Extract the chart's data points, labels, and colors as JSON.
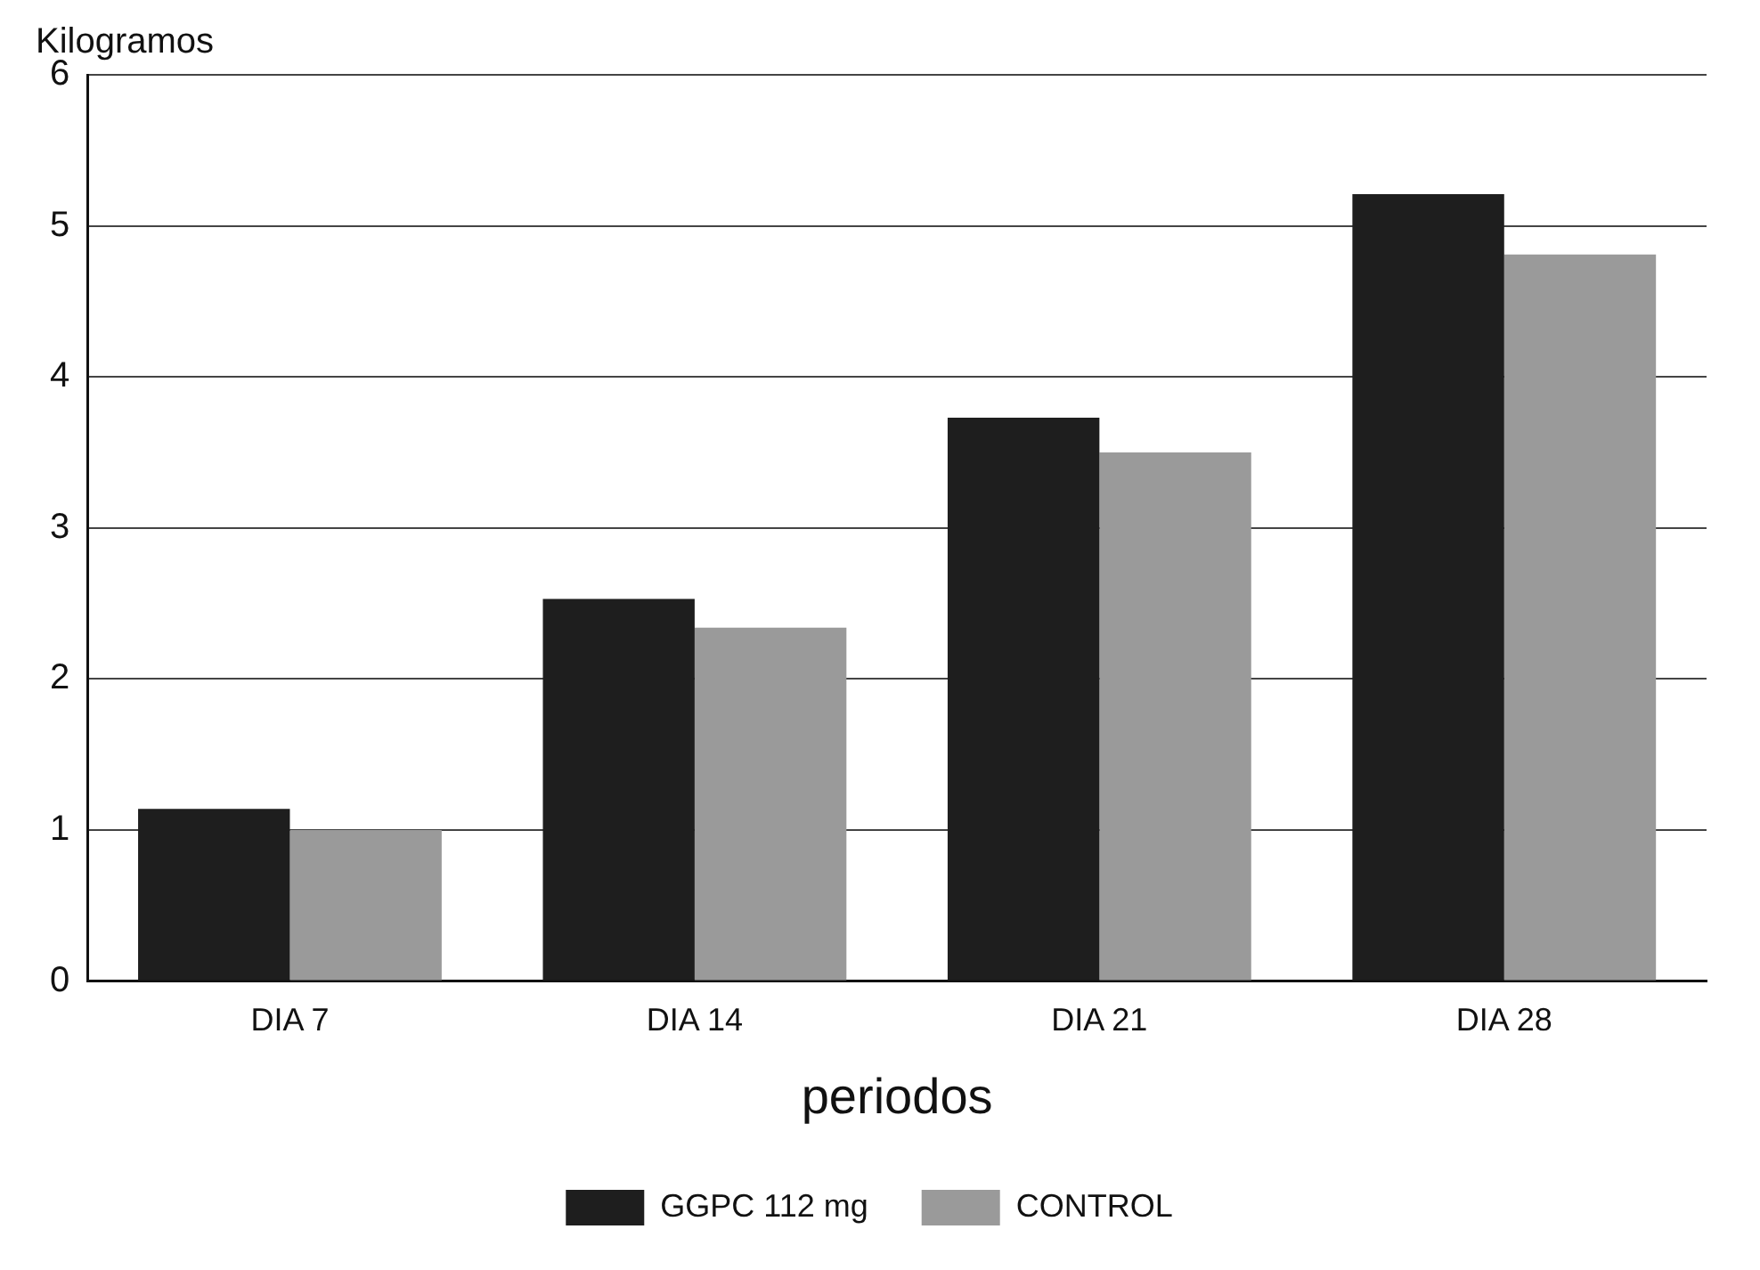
{
  "chart_data": {
    "type": "bar",
    "ylabel": "Kilogramos",
    "xlabel": "periodos",
    "categories": [
      "DIA 7",
      "DIA 14",
      "DIA 21",
      "DIA 28"
    ],
    "series": [
      {
        "name": "GGPC 112 mg",
        "color": "#1e1e1e",
        "values": [
          1.14,
          2.53,
          3.73,
          5.21
        ]
      },
      {
        "name": "CONTROL",
        "color": "#9a9a9a",
        "values": [
          1.0,
          2.34,
          3.5,
          4.81
        ]
      }
    ],
    "ylim": [
      0,
      6
    ],
    "yticks": [
      0,
      1,
      2,
      3,
      4,
      5,
      6
    ],
    "grid": "y",
    "legend": "bottom"
  }
}
